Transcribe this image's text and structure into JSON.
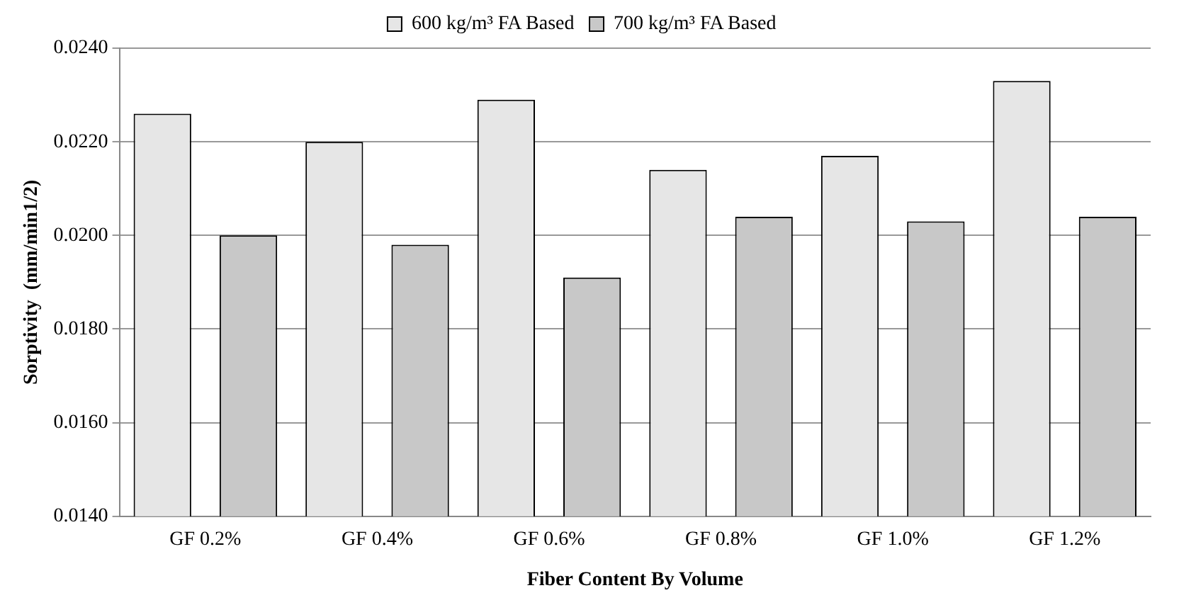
{
  "chart_data": {
    "type": "bar",
    "xlabel": "Fiber Content By Volume",
    "ylabel": "Sorptivity  (mm/min1/2)",
    "categories": [
      "GF 0.2%",
      "GF 0.4%",
      "GF 0.6%",
      "GF 0.8%",
      "GF 1.0%",
      "GF 1.2%"
    ],
    "series": [
      {
        "name": "600 kg/m³ FA Based",
        "color": "#e6e6e6",
        "values": [
          0.0226,
          0.022,
          0.0229,
          0.0214,
          0.0217,
          0.0233
        ]
      },
      {
        "name": "700 kg/m³ FA Based",
        "color": "#c8c8c8",
        "values": [
          0.02,
          0.0198,
          0.0191,
          0.0204,
          0.0203,
          0.0204
        ]
      }
    ],
    "ylim": [
      0.014,
      0.024
    ],
    "yticks": [
      {
        "value": 0.014,
        "label": "0.0140"
      },
      {
        "value": 0.016,
        "label": "0.0160"
      },
      {
        "value": 0.018,
        "label": "0.0180"
      },
      {
        "value": 0.02,
        "label": "0.0200"
      },
      {
        "value": 0.022,
        "label": "0.0220"
      },
      {
        "value": 0.024,
        "label": "0.0240"
      }
    ],
    "grid": "y",
    "legend": "top"
  }
}
